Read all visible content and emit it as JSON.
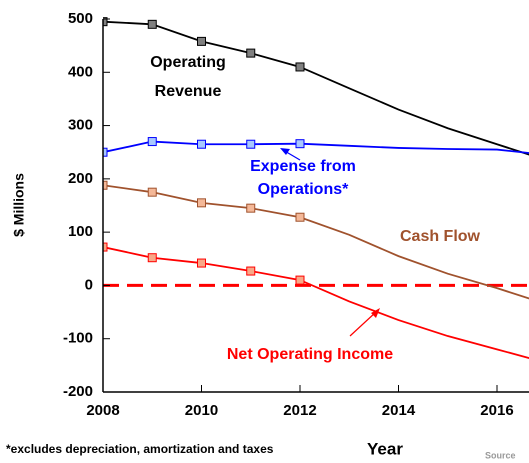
{
  "chart_data": {
    "type": "line",
    "xlabel": "Year",
    "ylabel": "$ Millions",
    "footnote": "*excludes depreciation, amortization and taxes",
    "source": "Source",
    "x": [
      2008,
      2009,
      2010,
      2011,
      2012,
      2013,
      2014,
      2015,
      2016,
      2017
    ],
    "xlim": [
      2008,
      2016.65
    ],
    "xticks": [
      2008,
      2010,
      2012,
      2014,
      2016
    ],
    "ylim": [
      -200,
      500
    ],
    "yticks": [
      -200,
      -100,
      0,
      100,
      200,
      300,
      400,
      500
    ],
    "markers_through": 2012,
    "zero_line_color": "#ff0000",
    "series": [
      {
        "name": [
          "Operating",
          "Revenue"
        ],
        "color": "#000000",
        "marker_fill": "#808080",
        "values": [
          495,
          490,
          458,
          436,
          410,
          370,
          330,
          295,
          265,
          235
        ]
      },
      {
        "name": [
          "Expense from",
          "Operations*"
        ],
        "color": "#0000ff",
        "marker_fill": "#a8c8ff",
        "values": [
          250,
          270,
          265,
          265,
          266,
          262,
          258,
          256,
          255,
          245
        ]
      },
      {
        "name": [
          "Cash Flow"
        ],
        "color": "#a0522d",
        "marker_fill": "#f4b898",
        "values": [
          188,
          175,
          155,
          145,
          128,
          95,
          55,
          22,
          -5,
          -35
        ]
      },
      {
        "name": [
          "Net Operating Income"
        ],
        "color": "#ff0000",
        "marker_fill": "#f8a888",
        "values": [
          72,
          52,
          42,
          27,
          10,
          -30,
          -65,
          -95,
          -120,
          -145
        ]
      }
    ]
  }
}
